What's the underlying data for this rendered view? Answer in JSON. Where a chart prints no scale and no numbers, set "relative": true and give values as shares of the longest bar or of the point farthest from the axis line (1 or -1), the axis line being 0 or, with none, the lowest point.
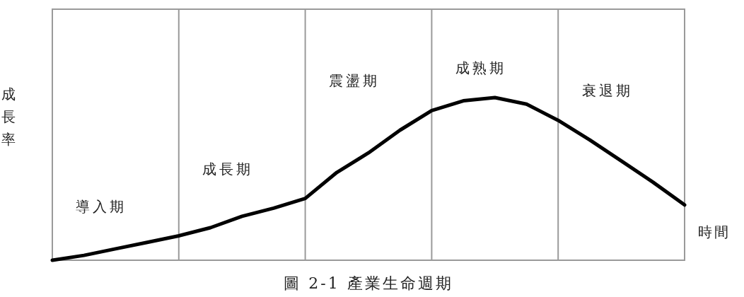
{
  "chart_data": {
    "type": "line",
    "relative": true,
    "title": "圖 2-1 產業生命週期",
    "xlabel": "時間",
    "ylabel": "成長率",
    "categories": [
      null,
      null,
      null,
      null,
      null,
      null,
      null,
      null,
      null,
      null,
      null,
      null,
      null,
      null,
      null,
      null,
      null,
      null,
      null,
      null,
      null
    ],
    "grid": "x",
    "annotations": [
      "導入期",
      "成長期",
      "震盪期",
      "成熟期",
      "衰退期"
    ],
    "series": [
      {
        "color": "#000000",
        "values": [
          0,
          0.03,
          0.07,
          0.11,
          0.15,
          0.2,
          0.27,
          0.32,
          0.38,
          0.54,
          0.66,
          0.8,
          0.92,
          0.98,
          1.0,
          0.96,
          0.86,
          0.74,
          0.61,
          0.48,
          0.34
        ]
      }
    ]
  }
}
